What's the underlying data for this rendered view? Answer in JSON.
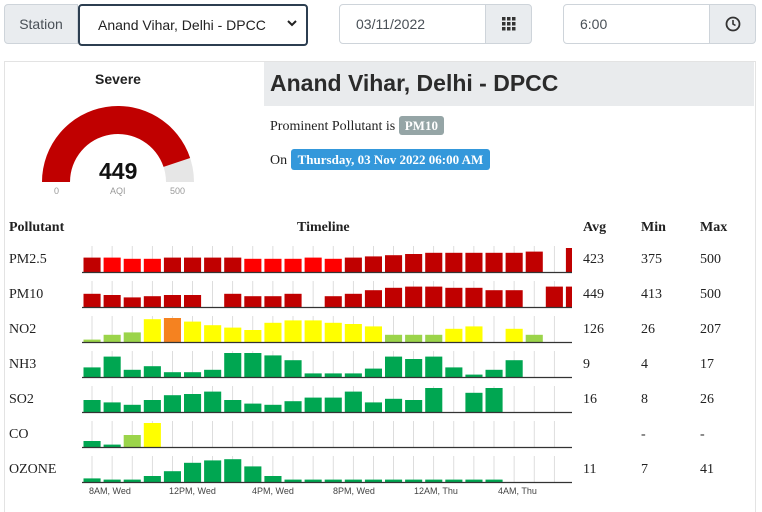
{
  "controls": {
    "station_label": "Station",
    "station_value": "Anand Vihar, Delhi - DPCC",
    "date_value": "03/11/2022",
    "time_value": "6:00"
  },
  "gauge": {
    "category": "Severe",
    "aqi_value": "449",
    "aqi_label": "AQI",
    "min": "0",
    "max": "500",
    "level_fraction": 0.898,
    "color": "#c00000"
  },
  "station": {
    "title": "Anand Vihar, Delhi - DPCC",
    "prominent_label": "Prominent Pollutant is",
    "prominent_value": "PM10",
    "on_label": "On",
    "timestamp": "Thursday, 03 Nov 2022 06:00 AM"
  },
  "table": {
    "headers": {
      "pollutant": "Pollutant",
      "timeline": "Timeline",
      "avg": "Avg",
      "min": "Min",
      "max": "Max"
    },
    "rows": [
      {
        "name": "PM2.5",
        "avg": "423",
        "min": "375",
        "max": "500"
      },
      {
        "name": "PM10",
        "avg": "449",
        "min": "413",
        "max": "500"
      },
      {
        "name": "NO2",
        "avg": "126",
        "min": "26",
        "max": "207"
      },
      {
        "name": "NH3",
        "avg": "9",
        "min": "4",
        "max": "17"
      },
      {
        "name": "SO2",
        "avg": "16",
        "min": "8",
        "max": "26"
      },
      {
        "name": "CO",
        "avg": "",
        "min": "-",
        "max": "-"
      },
      {
        "name": "OZONE",
        "avg": "11",
        "min": "7",
        "max": "41"
      }
    ],
    "time_axis": [
      "8AM, Wed",
      "12PM, Wed",
      "4PM, Wed",
      "8PM, Wed",
      "12AM, Thu",
      "4AM, Thu"
    ]
  },
  "colors": {
    "severe": "#c00000",
    "very_poor": "#ff0000",
    "poor": "#f58220",
    "moderate": "#ffff00",
    "satisfactory": "#9bd44a",
    "good": "#00a651"
  },
  "chart_data": {
    "type": "bar",
    "series": [
      {
        "name": "PM2.5",
        "values": [
          0.6,
          0.6,
          0.55,
          0.55,
          0.6,
          0.6,
          0.6,
          0.6,
          0.55,
          0.55,
          0.55,
          0.6,
          0.55,
          0.6,
          0.65,
          0.7,
          0.75,
          0.8,
          0.8,
          0.8,
          0.8,
          0.8,
          0.85,
          null,
          1.0,
          1.0
        ],
        "levels": [
          "severe",
          "very_poor",
          "very_poor",
          "very_poor",
          "severe",
          "severe",
          "severe",
          "severe",
          "very_poor",
          "very_poor",
          "very_poor",
          "very_poor",
          "very_poor",
          "severe",
          "severe",
          "severe",
          "severe",
          "severe",
          "severe",
          "severe",
          "severe",
          "severe",
          "severe",
          null,
          "severe",
          "severe"
        ]
      },
      {
        "name": "PM10",
        "values": [
          0.55,
          0.5,
          0.4,
          0.45,
          0.5,
          0.5,
          null,
          0.55,
          0.45,
          0.45,
          0.55,
          null,
          0.45,
          0.55,
          0.7,
          0.8,
          0.85,
          0.85,
          0.8,
          0.8,
          0.7,
          0.7,
          null,
          0.85,
          0.85
        ],
        "levels": [
          "severe",
          "severe",
          "severe",
          "severe",
          "severe",
          "severe",
          null,
          "severe",
          "severe",
          "severe",
          "severe",
          null,
          "severe",
          "severe",
          "severe",
          "severe",
          "severe",
          "severe",
          "severe",
          "severe",
          "severe",
          "severe",
          null,
          "severe",
          "severe"
        ]
      },
      {
        "name": "NO2",
        "values": [
          0.1,
          0.3,
          0.4,
          0.95,
          1.0,
          0.85,
          0.7,
          0.6,
          0.5,
          0.8,
          0.9,
          0.9,
          0.8,
          0.75,
          0.65,
          0.3,
          0.3,
          0.3,
          0.55,
          0.65,
          null,
          0.55,
          0.3
        ],
        "levels": [
          "satisfactory",
          "satisfactory",
          "satisfactory",
          "moderate",
          "poor",
          "moderate",
          "moderate",
          "moderate",
          "moderate",
          "moderate",
          "moderate",
          "moderate",
          "moderate",
          "moderate",
          "moderate",
          "satisfactory",
          "satisfactory",
          "satisfactory",
          "moderate",
          "moderate",
          null,
          "moderate",
          "satisfactory"
        ]
      },
      {
        "name": "NH3",
        "values": [
          0.4,
          0.85,
          0.3,
          0.45,
          0.2,
          0.2,
          0.3,
          1.0,
          1.0,
          0.9,
          0.7,
          0.15,
          0.15,
          0.15,
          0.35,
          0.85,
          0.75,
          0.85,
          0.4,
          0.1,
          0.3,
          0.7
        ],
        "levels": [
          "good",
          "good",
          "good",
          "good",
          "good",
          "good",
          "good",
          "good",
          "good",
          "good",
          "good",
          "good",
          "good",
          "good",
          "good",
          "good",
          "good",
          "good",
          "good",
          "good",
          "good",
          "good"
        ]
      },
      {
        "name": "SO2",
        "values": [
          0.5,
          0.4,
          0.3,
          0.5,
          0.7,
          0.75,
          0.85,
          0.5,
          0.35,
          0.3,
          0.45,
          0.6,
          0.6,
          0.85,
          0.4,
          0.55,
          0.5,
          1.0,
          null,
          0.8,
          1.0
        ],
        "levels": [
          "good",
          "good",
          "good",
          "good",
          "good",
          "good",
          "good",
          "good",
          "good",
          "good",
          "good",
          "good",
          "good",
          "good",
          "good",
          "good",
          "good",
          "good",
          null,
          "good",
          "good"
        ]
      },
      {
        "name": "CO",
        "values": [
          0.25,
          0.1,
          0.5,
          1.0
        ],
        "levels": [
          "good",
          "good",
          "satisfactory",
          "moderate"
        ]
      },
      {
        "name": "OZONE",
        "values": [
          0.15,
          0.1,
          0.1,
          0.25,
          0.45,
          0.8,
          0.9,
          0.95,
          0.65,
          0.25,
          0.1,
          0.1,
          0.1,
          0.1,
          0.1,
          0.1,
          0.1,
          0.1,
          0.1,
          0.1,
          0.1
        ],
        "levels": [
          "good",
          "good",
          "good",
          "good",
          "good",
          "good",
          "good",
          "good",
          "good",
          "good",
          "good",
          "good",
          "good",
          "good",
          "good",
          "good",
          "good",
          "good",
          "good",
          "good",
          "good"
        ]
      }
    ]
  }
}
